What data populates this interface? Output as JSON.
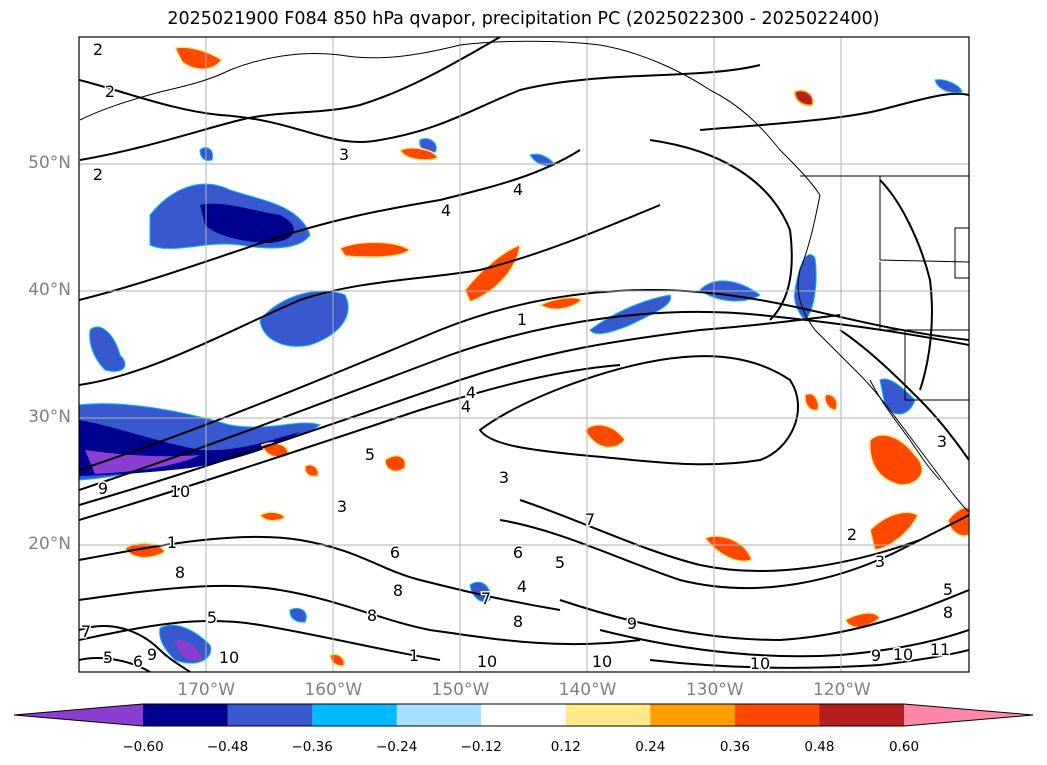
{
  "title": "2025021900 F084 850 hPa qvapor, precipitation PC (2025022300 - 2025022400)",
  "map": {
    "lon_range": [
      -180,
      -110
    ],
    "lat_range": [
      10,
      60
    ],
    "lat_labels": [
      "50°N",
      "40°N",
      "30°N",
      "20°N"
    ],
    "lat_values": [
      50,
      40,
      30,
      20
    ],
    "lon_labels": [
      "170°W",
      "160°W",
      "150°W",
      "140°W",
      "130°W",
      "120°W"
    ],
    "lon_values": [
      -170,
      -160,
      -150,
      -140,
      -130,
      -120
    ],
    "gridlines": true,
    "contour_labels": [
      "2",
      "2",
      "2",
      "3",
      "4",
      "4",
      "1",
      "4",
      "4",
      "5",
      "9",
      "10",
      "1",
      "8",
      "3",
      "3",
      "5",
      "7",
      "6",
      "5",
      "6",
      "8",
      "7",
      "4",
      "8",
      "8",
      "9",
      "1",
      "10",
      "10",
      "9",
      "10",
      "2",
      "3",
      "5",
      "8",
      "11",
      "9",
      "10",
      "7",
      "5",
      "6",
      "10",
      "3"
    ]
  },
  "colorbar": {
    "ticks": [
      "−0.60",
      "−0.48",
      "−0.36",
      "−0.24",
      "−0.12",
      "0.12",
      "0.24",
      "0.36",
      "0.48",
      "0.60"
    ],
    "colors": [
      "#8b3fd0",
      "#000090",
      "#3858d0",
      "#00bbff",
      "#a8e0ff",
      "#ffffff",
      "#ffe98a",
      "#ffa000",
      "#ff4800",
      "#b41e1e",
      "#ff88aa"
    ],
    "extend": "both"
  }
}
